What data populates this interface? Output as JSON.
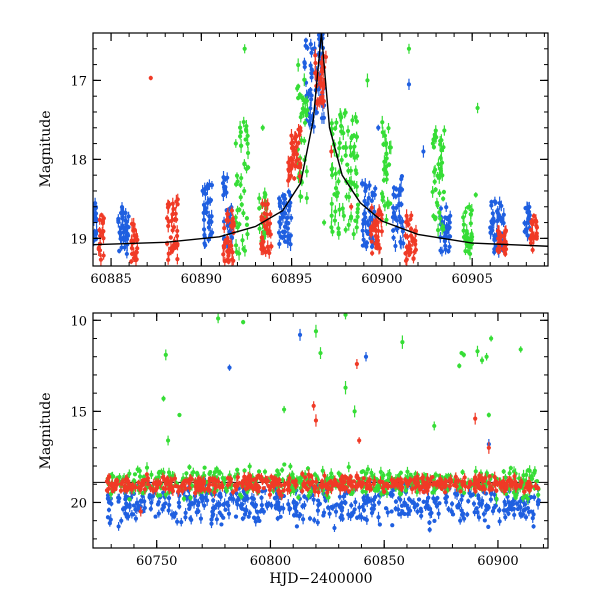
{
  "chart_data": [
    {
      "type": "scatter",
      "panel": "top",
      "xlabel": "",
      "ylabel": "Magnitude",
      "xlim": [
        60884,
        60909.2
      ],
      "ylim": [
        19.35,
        16.4
      ],
      "y_inverted": true,
      "xticks": [
        60885,
        60890,
        60895,
        60900,
        60905
      ],
      "xtick_labels": [
        "60885",
        "60890",
        "60895",
        "60900",
        "60905"
      ],
      "yticks": [
        17,
        18,
        19
      ],
      "ytick_labels": [
        "17",
        "18",
        "19"
      ],
      "grid": false,
      "legend": "none",
      "model_curve": {
        "name": "",
        "color": "#000000",
        "t0": 60896.65,
        "baseline": 19.12,
        "x": [
          60884,
          60888,
          60891,
          60893,
          60894.5,
          60895.5,
          60896.2,
          60896.65,
          60897.1,
          60897.8,
          60898.8,
          60900,
          60902,
          60905,
          60909.2
        ],
        "y": [
          19.08,
          19.05,
          18.98,
          18.85,
          18.65,
          18.3,
          17.5,
          16.4,
          17.6,
          18.2,
          18.55,
          18.78,
          18.95,
          19.06,
          19.1
        ]
      },
      "series": [
        {
          "name": "",
          "color": "#1f5fe0",
          "clusters": [
            {
              "x": [
                60884.0,
                60884.2
              ],
              "y": [
                18.5,
                19.1
              ]
            },
            {
              "x": [
                60885.4,
                60886.0
              ],
              "y": [
                18.6,
                19.2
              ]
            },
            {
              "x": [
                60890.0,
                60890.6
              ],
              "y": [
                18.3,
                19.1
              ]
            },
            {
              "x": [
                60891.2,
                60891.7
              ],
              "y": [
                18.2,
                19.2
              ]
            },
            {
              "x": [
                60894.3,
                60895.0
              ],
              "y": [
                18.4,
                19.1
              ]
            },
            {
              "x": [
                60895.7,
                60896.8
              ],
              "y": [
                16.4,
                17.6
              ]
            },
            {
              "x": [
                60898.9,
                60899.7
              ],
              "y": [
                18.3,
                19.2
              ]
            },
            {
              "x": [
                60900.6,
                60901.2
              ],
              "y": [
                18.2,
                19.1
              ]
            },
            {
              "x": [
                60903.2,
                60903.8
              ],
              "y": [
                18.6,
                19.2
              ]
            },
            {
              "x": [
                60906.0,
                60906.8
              ],
              "y": [
                18.5,
                19.2
              ]
            },
            {
              "x": [
                60907.9,
                60908.2
              ],
              "y": [
                18.6,
                19.0
              ]
            }
          ],
          "outliers": [
            {
              "x": 60896.2,
              "y": 16.6
            },
            {
              "x": 60901.5,
              "y": 17.05
            },
            {
              "x": 60902.3,
              "y": 17.9
            },
            {
              "x": 60899.8,
              "y": 17.6
            }
          ]
        },
        {
          "name": "",
          "color": "#36dd36",
          "clusters": [
            {
              "x": [
                60891.9,
                60892.6
              ],
              "y": [
                17.5,
                19.2
              ]
            },
            {
              "x": [
                60893.2,
                60893.6
              ],
              "y": [
                18.4,
                19.1
              ]
            },
            {
              "x": [
                60895.3,
                60895.9
              ],
              "y": [
                16.8,
                18.5
              ]
            },
            {
              "x": [
                60897.2,
                60898.7
              ],
              "y": [
                17.4,
                19.0
              ]
            },
            {
              "x": [
                60900.0,
                60900.5
              ],
              "y": [
                17.5,
                18.8
              ]
            },
            {
              "x": [
                60902.8,
                60903.5
              ],
              "y": [
                17.6,
                18.9
              ]
            },
            {
              "x": [
                60904.5,
                60905.0
              ],
              "y": [
                18.6,
                19.2
              ]
            }
          ],
          "outliers": [
            {
              "x": 60892.4,
              "y": 16.6
            },
            {
              "x": 60899.2,
              "y": 17.0
            },
            {
              "x": 60901.5,
              "y": 16.6
            },
            {
              "x": 60905.3,
              "y": 17.35
            },
            {
              "x": 60905.2,
              "y": 18.45
            },
            {
              "x": 60893.4,
              "y": 17.6
            },
            {
              "x": 60896.8,
              "y": 18.8
            }
          ]
        },
        {
          "name": "",
          "color": "#f03a26",
          "clusters": [
            {
              "x": [
                60884.3,
                60884.6
              ],
              "y": [
                18.7,
                19.3
              ]
            },
            {
              "x": [
                60886.1,
                60886.5
              ],
              "y": [
                18.8,
                19.3
              ]
            },
            {
              "x": [
                60888.1,
                60888.7
              ],
              "y": [
                18.5,
                19.3
              ]
            },
            {
              "x": [
                60891.2,
                60891.8
              ],
              "y": [
                18.6,
                19.3
              ]
            },
            {
              "x": [
                60893.3,
                60893.9
              ],
              "y": [
                18.5,
                19.2
              ]
            },
            {
              "x": [
                60894.8,
                60895.5
              ],
              "y": [
                17.6,
                18.3
              ]
            },
            {
              "x": [
                60896.3,
                60896.9
              ],
              "y": [
                16.6,
                17.3
              ]
            },
            {
              "x": [
                60899.4,
                60900.0
              ],
              "y": [
                18.6,
                19.2
              ]
            },
            {
              "x": [
                60901.3,
                60901.9
              ],
              "y": [
                18.7,
                19.3
              ]
            },
            {
              "x": [
                60906.4,
                60906.9
              ],
              "y": [
                18.9,
                19.2
              ]
            },
            {
              "x": [
                60908.2,
                60908.6
              ],
              "y": [
                18.7,
                19.2
              ]
            }
          ],
          "outliers": [
            {
              "x": 60887.2,
              "y": 16.97
            },
            {
              "x": 60898.3,
              "y": 18.6
            },
            {
              "x": 60897.2,
              "y": 17.9
            }
          ]
        }
      ]
    },
    {
      "type": "scatter",
      "panel": "bottom",
      "xlabel": "HJD−2400000",
      "ylabel": "Magnitude",
      "xlim": [
        60722,
        60922
      ],
      "ylim": [
        22.5,
        9.6
      ],
      "y_inverted": true,
      "xticks": [
        60750,
        60800,
        60850,
        60900
      ],
      "xtick_labels": [
        "60750",
        "60800",
        "60850",
        "60900"
      ],
      "yticks": [
        10,
        15,
        20
      ],
      "ytick_labels": [
        "10",
        "15",
        "20"
      ],
      "grid": false,
      "legend": "none",
      "baseline_line": {
        "y": 18.9,
        "color": "#000000"
      },
      "series": [
        {
          "name": "",
          "color": "#1f5fe0",
          "band": {
            "x": [
              60728,
              60918
            ],
            "y": [
              18.6,
              21.6
            ]
          },
          "outliers": [
            {
              "x": 60782,
              "y": 12.6
            },
            {
              "x": 60813,
              "y": 10.8
            },
            {
              "x": 60842,
              "y": 12.0
            },
            {
              "x": 60840,
              "y": 20.8
            },
            {
              "x": 60870,
              "y": 21.5
            },
            {
              "x": 60896,
              "y": 16.8
            }
          ]
        },
        {
          "name": "",
          "color": "#36dd36",
          "band": {
            "x": [
              60728,
              60918
            ],
            "y": [
              17.8,
              20.0
            ]
          },
          "outliers": [
            {
              "x": 60754,
              "y": 11.9
            },
            {
              "x": 60753,
              "y": 14.3
            },
            {
              "x": 60755,
              "y": 16.6
            },
            {
              "x": 60760,
              "y": 15.2
            },
            {
              "x": 60777,
              "y": 9.9
            },
            {
              "x": 60788,
              "y": 10.1
            },
            {
              "x": 60806,
              "y": 14.9
            },
            {
              "x": 60820,
              "y": 10.6
            },
            {
              "x": 60822,
              "y": 11.8
            },
            {
              "x": 60833,
              "y": 9.7
            },
            {
              "x": 60833,
              "y": 13.7
            },
            {
              "x": 60837,
              "y": 15.0
            },
            {
              "x": 60858,
              "y": 11.2
            },
            {
              "x": 60872,
              "y": 15.8
            },
            {
              "x": 60883,
              "y": 12.5
            },
            {
              "x": 60884,
              "y": 11.8
            },
            {
              "x": 60885,
              "y": 11.9
            },
            {
              "x": 60891,
              "y": 11.7
            },
            {
              "x": 60893,
              "y": 12.2
            },
            {
              "x": 60895,
              "y": 12.0
            },
            {
              "x": 60897,
              "y": 11.0
            },
            {
              "x": 60896,
              "y": 15.2
            },
            {
              "x": 60910,
              "y": 11.6
            }
          ]
        },
        {
          "name": "",
          "color": "#f03a26",
          "band": {
            "x": [
              60728,
              60918
            ],
            "y": [
              18.3,
              19.7
            ]
          },
          "outliers": [
            {
              "x": 60819,
              "y": 14.7
            },
            {
              "x": 60820,
              "y": 15.5
            },
            {
              "x": 60838,
              "y": 12.4
            },
            {
              "x": 60839,
              "y": 16.6
            },
            {
              "x": 60890,
              "y": 15.4
            },
            {
              "x": 60896,
              "y": 17.0
            },
            {
              "x": 60743,
              "y": 20.5
            }
          ]
        }
      ]
    }
  ]
}
